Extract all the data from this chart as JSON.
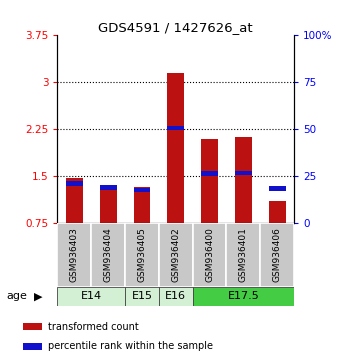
{
  "title": "GDS4591 / 1427626_at",
  "samples": [
    "GSM936403",
    "GSM936404",
    "GSM936405",
    "GSM936402",
    "GSM936400",
    "GSM936401",
    "GSM936406"
  ],
  "red_values": [
    1.47,
    1.35,
    1.32,
    3.15,
    2.1,
    2.12,
    1.1
  ],
  "blue_values": [
    1.38,
    1.32,
    1.28,
    2.27,
    1.54,
    1.55,
    1.3
  ],
  "red_base": 0.75,
  "yticks_left": [
    0.75,
    1.5,
    2.25,
    3.0,
    3.75
  ],
  "ytick_labels_left": [
    "0.75",
    "1.5",
    "2.25",
    "3",
    "3.75"
  ],
  "yticks_right": [
    0,
    25,
    50,
    75,
    100
  ],
  "ytick_labels_right": [
    "0",
    "25",
    "50",
    "75",
    "100%"
  ],
  "ylim": [
    0.75,
    3.75
  ],
  "right_ylim": [
    0,
    100
  ],
  "bar_color_red": "#bb1111",
  "bar_color_blue": "#1111cc",
  "bar_width": 0.5,
  "blue_bar_height": 0.07,
  "age_data": [
    {
      "label": "E14",
      "start": 0,
      "end": 1,
      "color": "#d4f0d4"
    },
    {
      "label": "E15",
      "start": 2,
      "end": 2,
      "color": "#d4f0d4"
    },
    {
      "label": "E16",
      "start": 3,
      "end": 3,
      "color": "#d4f0d4"
    },
    {
      "label": "E17.5",
      "start": 4,
      "end": 6,
      "color": "#44cc44"
    }
  ],
  "legend_labels": [
    "transformed count",
    "percentile rank within the sample"
  ],
  "xlabel_age": "age"
}
